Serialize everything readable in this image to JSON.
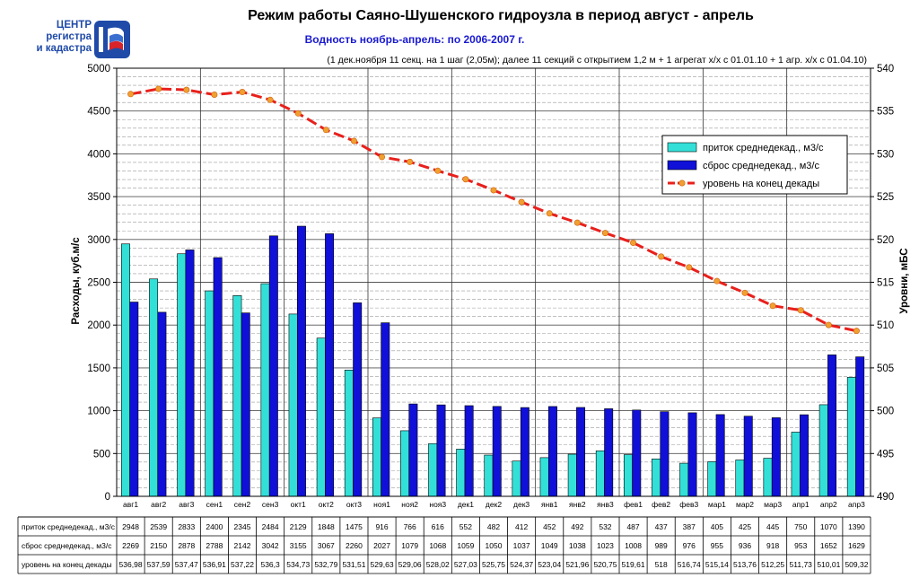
{
  "logo": {
    "line1": "ЦЕНТР",
    "line2": "регистра",
    "line3": "и кадастра",
    "color": "#1f4aa8"
  },
  "chart_data": {
    "type": "bar",
    "title": "Режим работы Саяно-Шушенского гидроузла в период август - апрель",
    "subtitle": "Водность ноябрь-апрель: по 2006-2007 г.",
    "note": "(1 дек.ноября 11 секц. на 1 шаг (2,05м); далее 11 секций с открытием 1,2 м + 1 агрегат х/х с 01.01.10 + 1 агр. х/х с 01.04.10)",
    "ylabel": "Расходы, куб.м/с",
    "y2label": "Уровни, мБС",
    "ylim": [
      0,
      5000
    ],
    "y2lim": [
      490,
      540
    ],
    "yticks": [
      "0",
      "500",
      "1000",
      "1500",
      "2000",
      "2500",
      "3000",
      "3500",
      "4000",
      "4500",
      "5000"
    ],
    "y2ticks": [
      "490",
      "495",
      "500",
      "505",
      "510",
      "515",
      "520",
      "525",
      "530",
      "535",
      "540"
    ],
    "categories": [
      "авг1",
      "авг2",
      "авг3",
      "сен1",
      "сен2",
      "сен3",
      "окт1",
      "окт2",
      "окт3",
      "ноя1",
      "ноя2",
      "ноя3",
      "дек1",
      "дек2",
      "дек3",
      "янв1",
      "янв2",
      "янв3",
      "фев1",
      "фев2",
      "фев3",
      "мар1",
      "мар2",
      "мар3",
      "апр1",
      "апр2",
      "апр3"
    ],
    "series": [
      {
        "name": "приток среднедекад., м3/с",
        "table_label": "приток среднедекад., м3/с",
        "type": "bar",
        "axis": "left",
        "color": "#33e0d8",
        "values": [
          2948,
          2539,
          2833,
          2400,
          2345,
          2484,
          2129,
          1848,
          1475,
          916,
          766,
          616,
          552,
          482,
          412,
          452,
          492,
          532,
          487,
          437,
          387,
          405,
          425,
          445,
          750,
          1070,
          1390
        ],
        "labels": [
          "2948",
          "2539",
          "2833",
          "2400",
          "2345",
          "2484",
          "2129",
          "1848",
          "1475",
          "916",
          "766",
          "616",
          "552",
          "482",
          "412",
          "452",
          "492",
          "532",
          "487",
          "437",
          "387",
          "405",
          "425",
          "445",
          "750",
          "1070",
          "1390"
        ]
      },
      {
        "name": "сброс среднедекад., м3/с",
        "table_label": "сброс среднедекад., м3/с",
        "type": "bar",
        "axis": "left",
        "color": "#1010d8",
        "values": [
          2269,
          2150,
          2878,
          2788,
          2142,
          3042,
          3155,
          3067,
          2260,
          2027,
          1079,
          1068,
          1059,
          1050,
          1037,
          1049,
          1038,
          1023,
          1008,
          989,
          976,
          955,
          936,
          918,
          953,
          1652,
          1629
        ],
        "labels": [
          "2269",
          "2150",
          "2878",
          "2788",
          "2142",
          "3042",
          "3155",
          "3067",
          "2260",
          "2027",
          "1079",
          "1068",
          "1059",
          "1050",
          "1037",
          "1049",
          "1038",
          "1023",
          "1008",
          "989",
          "976",
          "955",
          "936",
          "918",
          "953",
          "1652",
          "1629"
        ]
      },
      {
        "name": "уровень на конец декады",
        "table_label": "уровень на конец декады",
        "type": "line",
        "axis": "right",
        "color": "#e8201c",
        "marker_color": "#f0a030",
        "values": [
          536.98,
          537.59,
          537.47,
          536.91,
          537.22,
          536.3,
          534.73,
          532.79,
          531.51,
          529.63,
          529.06,
          528.02,
          527.03,
          525.75,
          524.37,
          523.04,
          521.96,
          520.75,
          519.61,
          518,
          516.74,
          515.14,
          513.76,
          512.25,
          511.73,
          510.01,
          509.32
        ],
        "labels": [
          "536,98",
          "537,59",
          "537,47",
          "536,91",
          "537,22",
          "536,3",
          "534,73",
          "532,79",
          "531,51",
          "529,63",
          "529,06",
          "528,02",
          "527,03",
          "525,75",
          "524,37",
          "523,04",
          "521,96",
          "520,75",
          "519,61",
          "518",
          "516,74",
          "515,14",
          "513,76",
          "512,25",
          "511,73",
          "510,01",
          "509,32"
        ]
      }
    ],
    "grid": true,
    "legend": "top-right"
  }
}
